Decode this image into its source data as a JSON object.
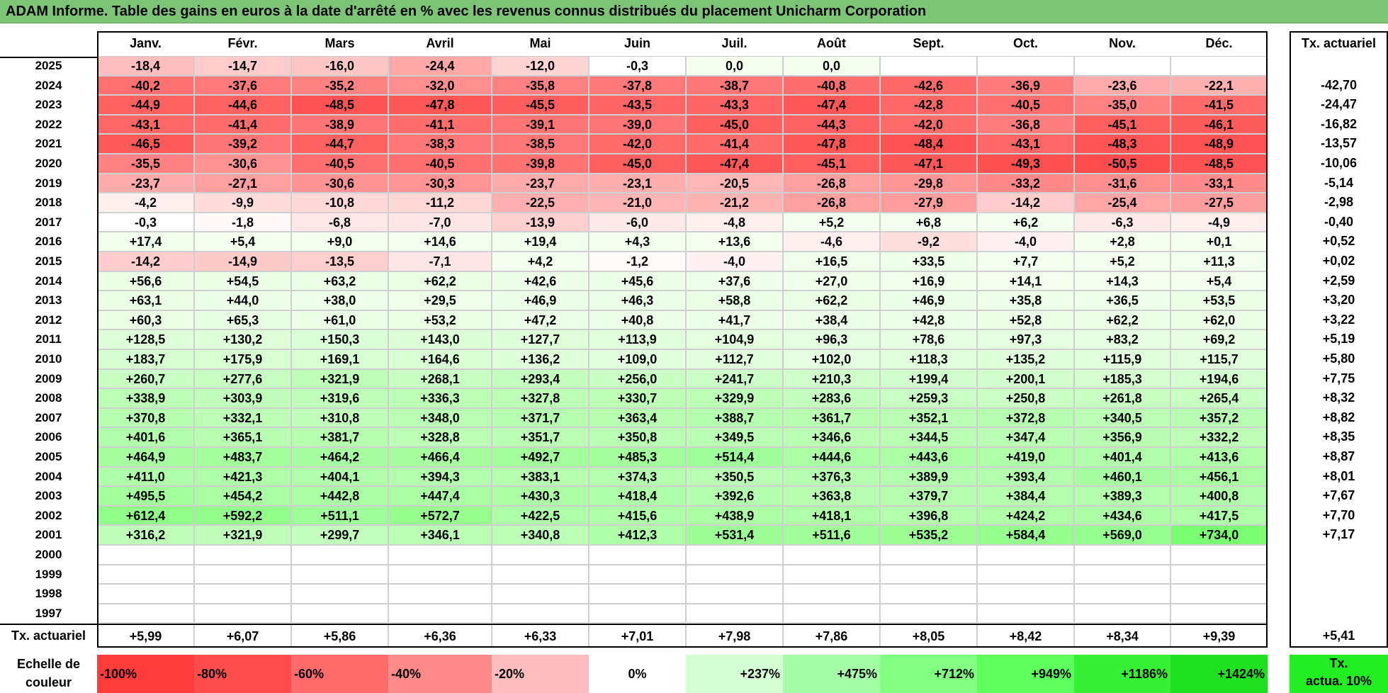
{
  "title": "ADAM Informe. Table des gains en euros à la date d'arrêté en % avec les revenus connus distribués du placement Unicharm Corporation",
  "chart_data": {
    "type": "heatmap",
    "title": "ADAM Informe. Table des gains en euros à la date d'arrêté en % avec les revenus connus distribués du placement Unicharm Corporation",
    "months": [
      "Janv.",
      "Févr.",
      "Mars",
      "Avril",
      "Mai",
      "Juin",
      "Juil.",
      "Août",
      "Sept.",
      "Oct.",
      "Nov.",
      "Déc."
    ],
    "side_header": "Tx. actuariel",
    "rows": [
      {
        "year": "2025",
        "values": [
          "-18,4",
          "-14,7",
          "-16,0",
          "-24,4",
          "-12,0",
          "-0,3",
          "0,0",
          "0,0",
          "",
          "",
          "",
          ""
        ],
        "tx": ""
      },
      {
        "year": "2024",
        "values": [
          "-40,2",
          "-37,6",
          "-35,2",
          "-32,0",
          "-35,8",
          "-37,8",
          "-38,7",
          "-40,8",
          "-42,6",
          "-36,9",
          "-23,6",
          "-22,1"
        ],
        "tx": "-42,70"
      },
      {
        "year": "2023",
        "values": [
          "-44,9",
          "-44,6",
          "-48,5",
          "-47,8",
          "-45,5",
          "-43,5",
          "-43,3",
          "-47,4",
          "-42,8",
          "-40,5",
          "-35,0",
          "-41,5"
        ],
        "tx": "-24,47"
      },
      {
        "year": "2022",
        "values": [
          "-43,1",
          "-41,4",
          "-38,9",
          "-41,1",
          "-39,1",
          "-39,0",
          "-45,0",
          "-44,3",
          "-42,0",
          "-36,8",
          "-45,1",
          "-46,1"
        ],
        "tx": "-16,82"
      },
      {
        "year": "2021",
        "values": [
          "-46,5",
          "-39,2",
          "-44,7",
          "-38,3",
          "-38,5",
          "-42,0",
          "-41,4",
          "-47,8",
          "-48,4",
          "-43,1",
          "-48,3",
          "-48,9"
        ],
        "tx": "-13,57"
      },
      {
        "year": "2020",
        "values": [
          "-35,5",
          "-30,6",
          "-40,5",
          "-40,5",
          "-39,8",
          "-45,0",
          "-47,4",
          "-45,1",
          "-47,1",
          "-49,3",
          "-50,5",
          "-48,5"
        ],
        "tx": "-10,06"
      },
      {
        "year": "2019",
        "values": [
          "-23,7",
          "-27,1",
          "-30,6",
          "-30,3",
          "-23,7",
          "-23,1",
          "-20,5",
          "-26,8",
          "-29,8",
          "-33,2",
          "-31,6",
          "-33,1"
        ],
        "tx": "-5,14"
      },
      {
        "year": "2018",
        "values": [
          "-4,2",
          "-9,9",
          "-10,8",
          "-11,2",
          "-22,5",
          "-21,0",
          "-21,2",
          "-26,8",
          "-27,9",
          "-14,2",
          "-25,4",
          "-27,5"
        ],
        "tx": "-2,98"
      },
      {
        "year": "2017",
        "values": [
          "-0,3",
          "-1,8",
          "-6,8",
          "-7,0",
          "-13,9",
          "-6,0",
          "-4,8",
          "+5,2",
          "+6,8",
          "+6,2",
          "-6,3",
          "-4,9"
        ],
        "tx": "-0,40"
      },
      {
        "year": "2016",
        "values": [
          "+17,4",
          "+5,4",
          "+9,0",
          "+14,6",
          "+19,4",
          "+4,3",
          "+13,6",
          "-4,6",
          "-9,2",
          "-4,0",
          "+2,8",
          "+0,1"
        ],
        "tx": "+0,52"
      },
      {
        "year": "2015",
        "values": [
          "-14,2",
          "-14,9",
          "-13,5",
          "-7,1",
          "+4,2",
          "-1,2",
          "-4,0",
          "+16,5",
          "+33,5",
          "+7,7",
          "+5,2",
          "+11,3"
        ],
        "tx": "+0,02"
      },
      {
        "year": "2014",
        "values": [
          "+56,6",
          "+54,5",
          "+63,2",
          "+62,2",
          "+42,6",
          "+45,6",
          "+37,6",
          "+27,0",
          "+16,9",
          "+14,1",
          "+14,3",
          "+5,4"
        ],
        "tx": "+2,59"
      },
      {
        "year": "2013",
        "values": [
          "+63,1",
          "+44,0",
          "+38,0",
          "+29,5",
          "+46,9",
          "+46,3",
          "+58,8",
          "+62,2",
          "+46,9",
          "+35,8",
          "+36,5",
          "+53,5"
        ],
        "tx": "+3,20"
      },
      {
        "year": "2012",
        "values": [
          "+60,3",
          "+65,3",
          "+61,0",
          "+53,2",
          "+47,2",
          "+40,8",
          "+41,7",
          "+38,4",
          "+42,8",
          "+52,8",
          "+62,2",
          "+62,0"
        ],
        "tx": "+3,22"
      },
      {
        "year": "2011",
        "values": [
          "+128,5",
          "+130,2",
          "+150,3",
          "+143,0",
          "+127,7",
          "+113,9",
          "+104,9",
          "+96,3",
          "+78,6",
          "+97,3",
          "+83,2",
          "+69,2"
        ],
        "tx": "+5,19"
      },
      {
        "year": "2010",
        "values": [
          "+183,7",
          "+175,9",
          "+169,1",
          "+164,6",
          "+136,2",
          "+109,0",
          "+112,7",
          "+102,0",
          "+118,3",
          "+135,2",
          "+115,9",
          "+115,7"
        ],
        "tx": "+5,80"
      },
      {
        "year": "2009",
        "values": [
          "+260,7",
          "+277,6",
          "+321,9",
          "+268,1",
          "+293,4",
          "+256,0",
          "+241,7",
          "+210,3",
          "+199,4",
          "+200,1",
          "+185,3",
          "+194,6"
        ],
        "tx": "+7,75"
      },
      {
        "year": "2008",
        "values": [
          "+338,9",
          "+303,9",
          "+319,6",
          "+336,3",
          "+327,8",
          "+330,7",
          "+329,9",
          "+283,6",
          "+259,3",
          "+250,8",
          "+261,8",
          "+265,4"
        ],
        "tx": "+8,32"
      },
      {
        "year": "2007",
        "values": [
          "+370,8",
          "+332,1",
          "+310,8",
          "+348,0",
          "+371,7",
          "+363,4",
          "+388,7",
          "+361,7",
          "+352,1",
          "+372,8",
          "+340,5",
          "+357,2"
        ],
        "tx": "+8,82"
      },
      {
        "year": "2006",
        "values": [
          "+401,6",
          "+365,1",
          "+381,7",
          "+328,8",
          "+351,7",
          "+350,8",
          "+349,5",
          "+346,6",
          "+344,5",
          "+347,4",
          "+356,9",
          "+332,2"
        ],
        "tx": "+8,35"
      },
      {
        "year": "2005",
        "values": [
          "+464,9",
          "+483,7",
          "+464,2",
          "+466,4",
          "+492,7",
          "+485,3",
          "+514,4",
          "+444,6",
          "+443,6",
          "+419,0",
          "+401,4",
          "+413,6"
        ],
        "tx": "+8,87"
      },
      {
        "year": "2004",
        "values": [
          "+411,0",
          "+421,3",
          "+404,1",
          "+394,3",
          "+383,1",
          "+374,3",
          "+350,5",
          "+376,3",
          "+389,9",
          "+393,4",
          "+460,1",
          "+456,1"
        ],
        "tx": "+8,01"
      },
      {
        "year": "2003",
        "values": [
          "+495,5",
          "+454,2",
          "+442,8",
          "+447,4",
          "+430,3",
          "+418,4",
          "+392,6",
          "+363,8",
          "+379,7",
          "+384,4",
          "+389,3",
          "+400,8"
        ],
        "tx": "+7,67"
      },
      {
        "year": "2002",
        "values": [
          "+612,4",
          "+592,2",
          "+511,1",
          "+572,7",
          "+422,5",
          "+415,6",
          "+438,9",
          "+418,1",
          "+396,8",
          "+424,2",
          "+434,6",
          "+417,5"
        ],
        "tx": "+7,70"
      },
      {
        "year": "2001",
        "values": [
          "+316,2",
          "+321,9",
          "+299,7",
          "+346,1",
          "+340,8",
          "+412,3",
          "+531,4",
          "+511,6",
          "+535,2",
          "+584,4",
          "+569,0",
          "+734,0"
        ],
        "tx": "+7,17"
      },
      {
        "year": "2000",
        "values": [
          "",
          "",
          "",
          "",
          "",
          "",
          "",
          "",
          "",
          "",
          "",
          ""
        ],
        "tx": ""
      },
      {
        "year": "1999",
        "values": [
          "",
          "",
          "",
          "",
          "",
          "",
          "",
          "",
          "",
          "",
          "",
          ""
        ],
        "tx": ""
      },
      {
        "year": "1998",
        "values": [
          "",
          "",
          "",
          "",
          "",
          "",
          "",
          "",
          "",
          "",
          "",
          ""
        ],
        "tx": ""
      },
      {
        "year": "1997",
        "values": [
          "",
          "",
          "",
          "",
          "",
          "",
          "",
          "",
          "",
          "",
          "",
          ""
        ],
        "tx": ""
      }
    ],
    "footer": {
      "label": "Tx. actuariel",
      "values": [
        "+5,99",
        "+6,07",
        "+5,86",
        "+6,36",
        "+6,33",
        "+7,01",
        "+7,98",
        "+7,86",
        "+8,05",
        "+8,42",
        "+8,34",
        "+9,39"
      ],
      "tx": "+5,41"
    },
    "legend": {
      "label_line1": "Echelle de",
      "label_line2": "couleur",
      "entries": [
        {
          "text": "-100%",
          "color": "#ff3b3b"
        },
        {
          "text": "-80%",
          "color": "#ff4d4d"
        },
        {
          "text": "-60%",
          "color": "#ff6a6a"
        },
        {
          "text": "-40%",
          "color": "#ff8a8a"
        },
        {
          "text": "-20%",
          "color": "#ffbdbd"
        },
        {
          "text": "0%",
          "color": "#ffffff"
        },
        {
          "text": "+237%",
          "color": "#d4ffd4"
        },
        {
          "text": "+475%",
          "color": "#a6ffa6"
        },
        {
          "text": "+712%",
          "color": "#80ff80"
        },
        {
          "text": "+949%",
          "color": "#5cff5c"
        },
        {
          "text": "+1186%",
          "color": "#35f035"
        },
        {
          "text": "+1424%",
          "color": "#1fe01f"
        }
      ],
      "side_line1": "Tx.",
      "side_line2": "actua. 10%",
      "side_color": "#22ee22"
    }
  }
}
